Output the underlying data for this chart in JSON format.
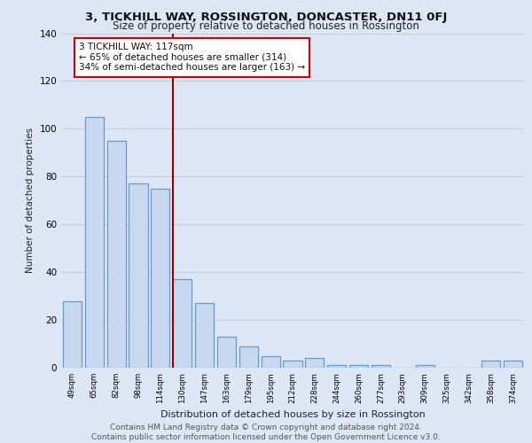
{
  "title": "3, TICKHILL WAY, ROSSINGTON, DONCASTER, DN11 0FJ",
  "subtitle": "Size of property relative to detached houses in Rossington",
  "xlabel": "Distribution of detached houses by size in Rossington",
  "ylabel": "Number of detached properties",
  "categories": [
    "49sqm",
    "65sqm",
    "82sqm",
    "98sqm",
    "114sqm",
    "130sqm",
    "147sqm",
    "163sqm",
    "179sqm",
    "195sqm",
    "212sqm",
    "228sqm",
    "244sqm",
    "260sqm",
    "277sqm",
    "293sqm",
    "309sqm",
    "325sqm",
    "342sqm",
    "358sqm",
    "374sqm"
  ],
  "values": [
    28,
    105,
    95,
    77,
    75,
    37,
    27,
    13,
    9,
    5,
    3,
    4,
    1,
    1,
    1,
    0,
    1,
    0,
    0,
    3,
    3
  ],
  "bar_color": "#c8d8ee",
  "bar_edge_color": "#6699cc",
  "highlight_line_color": "#990000",
  "annotation_line1": "3 TICKHILL WAY: 117sqm",
  "annotation_line2": "← 65% of detached houses are smaller (314)",
  "annotation_line3": "34% of semi-detached houses are larger (163) →",
  "annotation_box_color": "#ffffff",
  "annotation_box_edge_color": "#cc0000",
  "footer_text": "Contains HM Land Registry data © Crown copyright and database right 2024.\nContains public sector information licensed under the Open Government Licence v3.0.",
  "ylim": [
    0,
    140
  ],
  "yticks": [
    0,
    20,
    40,
    60,
    80,
    100,
    120,
    140
  ],
  "bg_color": "#dce6f5",
  "grid_color": "#c0cce0"
}
